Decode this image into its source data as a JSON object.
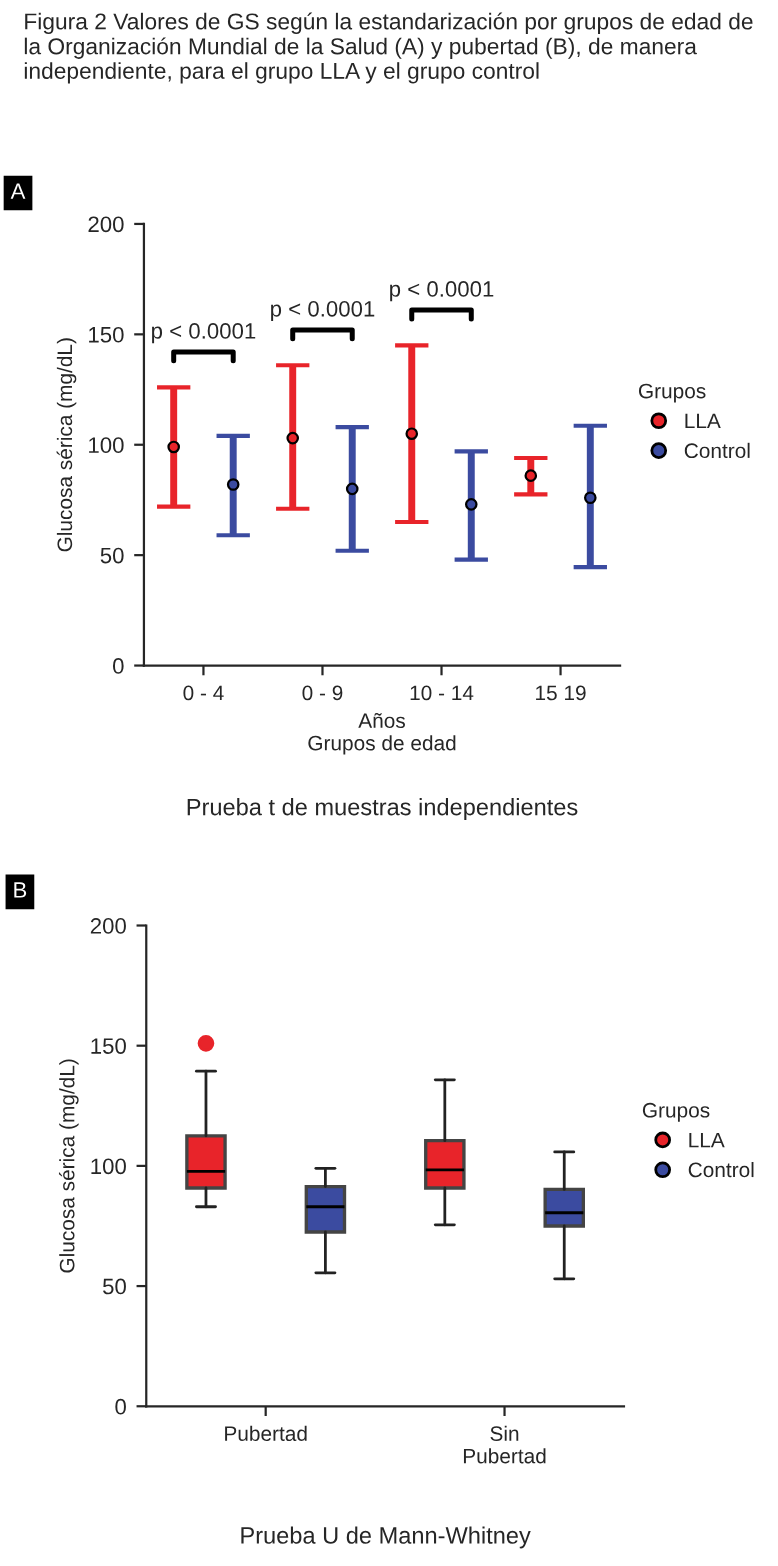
{
  "chart_data": [
    {
      "type": "scatter",
      "title": "Figura 2 Valores de GS según la estandarización por grupos de edad de la Organización Mundial de la Salud (A) y pubertad (B), de manera independiente, para el grupo LLA y el grupo control",
      "categories": [
        "0 - 4",
        "0 - 9",
        "10 - 14",
        "15 19"
      ],
      "series": [
        {
          "name": "LLA",
          "color": "#e8242a",
          "values": [
            99,
            103,
            105,
            86
          ],
          "errors": [
            [
              72,
              126
            ],
            [
              71,
              136
            ],
            [
              65,
              145
            ],
            [
              77.5,
              94
            ]
          ]
        },
        {
          "name": "Control",
          "color": "#3b4ba0",
          "values": [
            82,
            80,
            73,
            76
          ],
          "errors": [
            [
              59,
              104
            ],
            [
              52,
              108
            ],
            [
              48,
              97
            ],
            [
              44.6,
              108.6
            ]
          ]
        }
      ],
      "xlabel": "Años\nGrupos de edad",
      "ylabel": "Glucosa sérica (mg/dL)",
      "legend_title": "Grupos",
      "legend": "right",
      "marker": "circle",
      "ylim": [
        0,
        200
      ],
      "yticks": [
        0,
        50,
        100,
        150,
        200
      ],
      "annotations": [
        "A",
        "p < 0.0001",
        "p < 0.0001",
        "p < 0.0001",
        "Prueba t de muestras independientes"
      ]
    },
    {
      "type": "box",
      "categories": [
        "Pubertad",
        "Sin\nPubertad"
      ],
      "series": [
        {
          "name": "LLA",
          "color": "#e8242a",
          "boxes": [
            {
              "low": 83,
              "q1": 90.8,
              "median": 97.7,
              "q3": 112.5,
              "high": 139.4,
              "outliers": [
                151
              ]
            },
            {
              "low": 75.5,
              "q1": 90.8,
              "median": 98.3,
              "q3": 110.5,
              "high": 135.8
            }
          ]
        },
        {
          "name": "Control",
          "color": "#3b4ba0",
          "boxes": [
            {
              "low": 55.5,
              "q1": 72.5,
              "median": 83,
              "q3": 91.4,
              "high": 99
            },
            {
              "low": 53,
              "q1": 75,
              "median": 80.5,
              "q3": 90.2,
              "high": 105.8
            }
          ]
        }
      ],
      "ylabel": "Glucosa sérica (mg/dL)",
      "legend_title": "Grupos",
      "legend": "right",
      "marker": "circle",
      "ylim": [
        0,
        200
      ],
      "yticks": [
        0,
        50,
        100,
        150,
        200
      ],
      "annotations": [
        "B",
        "Prueba U de Mann-Whitney"
      ]
    }
  ]
}
